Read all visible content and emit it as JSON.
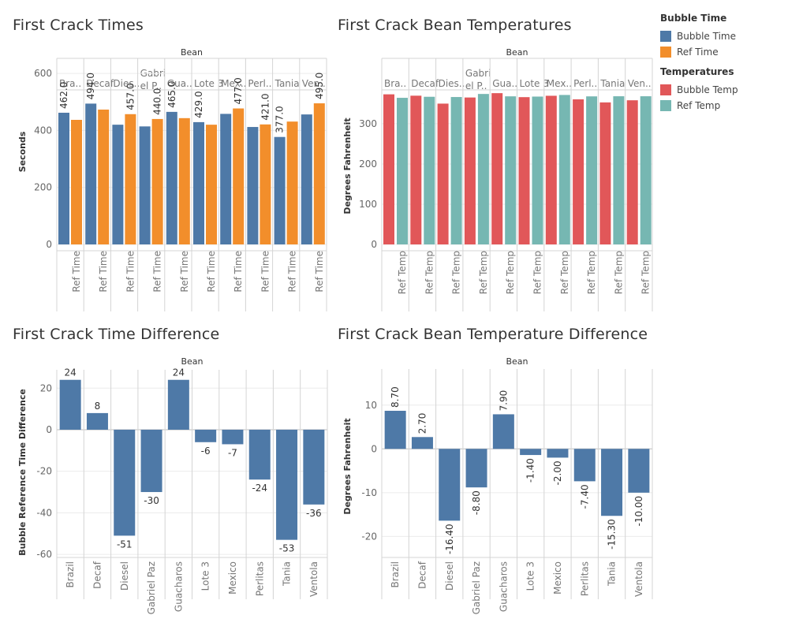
{
  "charts": [
    {
      "title": "First Crack Times"
    },
    {
      "title": "First Crack Bean Temperatures"
    },
    {
      "title": "First Crack Time Difference"
    },
    {
      "title": "First Crack Bean Temperature Difference"
    }
  ],
  "legends": [
    {
      "title": "Bubble Time",
      "items": [
        {
          "label": "Bubble Time",
          "color": "#4e79a7"
        },
        {
          "label": "Ref Time",
          "color": "#f28e2b"
        }
      ]
    },
    {
      "title": "Temperatures",
      "items": [
        {
          "label": "Bubble Temp",
          "color": "#e15759"
        },
        {
          "label": "Ref Temp",
          "color": "#76b7b2"
        }
      ]
    }
  ],
  "chart_data": [
    {
      "type": "bar",
      "title": "First Crack Times",
      "header": "Bean",
      "ylabel": "Seconds",
      "ylim": [
        0,
        650
      ],
      "yticks": [
        0,
        200,
        400,
        600
      ],
      "grid": true,
      "categories": [
        "Bra..",
        "Decaf",
        "Dies..",
        "Gabri el P..",
        "Gua..",
        "Lote 3",
        "Mex..",
        "Perl..",
        "Tania",
        "Ven.."
      ],
      "bottom_labels": [
        "",
        "Ref Time"
      ],
      "series": [
        {
          "name": "Bubble Time",
          "color": "#4e79a7",
          "values": [
            462,
            494,
            420,
            414,
            465,
            429,
            458,
            412,
            377,
            456
          ]
        },
        {
          "name": "Ref Time",
          "color": "#f28e2b",
          "values": [
            437,
            473,
            457,
            440,
            443,
            420,
            477,
            421,
            431,
            495
          ]
        }
      ],
      "data_labels": [
        [
          462.0,
          494.0,
          457.0,
          440.0,
          465.0,
          429.0,
          477.0,
          421.0,
          377.0,
          495.0
        ],
        [
          "462.0",
          "494.0",
          "457.0",
          "440.0",
          "465.0",
          "429.0",
          "477.0",
          "421.0",
          "377.0",
          "495.0"
        ]
      ]
    },
    {
      "type": "bar",
      "title": "First Crack Bean Temperatures",
      "header": "Bean",
      "ylabel": "Degrees Fahrenheit",
      "ylim": [
        0,
        390
      ],
      "yticks": [
        0,
        100,
        200,
        300
      ],
      "grid": true,
      "categories": [
        "Bra..",
        "Decaf",
        "Dies..",
        "Gabri el P..",
        "Gua..",
        "Lote 3",
        "Mex..",
        "Perl..",
        "Tania",
        "Ven.."
      ],
      "bottom_labels": [
        "",
        "Ref Temp"
      ],
      "series": [
        {
          "name": "Bubble Temp",
          "color": "#e15759",
          "values": [
            373.1,
            369.7,
            350,
            365.2,
            376,
            366.1,
            369.5,
            360.6,
            353,
            358.3
          ]
        },
        {
          "name": "Ref Temp",
          "color": "#76b7b2",
          "values": [
            364.4,
            367,
            366.4,
            374,
            368.1,
            367.5,
            371.5,
            368,
            368.3,
            368.3
          ]
        }
      ]
    },
    {
      "type": "bar",
      "title": "First Crack Time Difference",
      "header": "Bean",
      "ylabel": "Bubble Reference Time Difference",
      "ylim": [
        -63,
        22
      ],
      "yticks": [
        -60,
        -40,
        -20,
        0,
        20
      ],
      "grid": true,
      "categories": [
        "Brazil",
        "Decaf",
        "Diesel",
        "Gabriel Paz",
        "Guacharos",
        "Lote 3",
        "Mexico",
        "Perlitas",
        "Tania",
        "Ventola"
      ],
      "series": [
        {
          "name": "",
          "color": "#4e79a7",
          "values": [
            24,
            8,
            -51,
            -30,
            24,
            -6,
            -7,
            -24,
            -53,
            -36
          ]
        }
      ],
      "labels": [
        "24",
        "8",
        "-51",
        "-30",
        "24",
        "-6",
        "-7",
        "-24",
        "-53",
        "-36"
      ]
    },
    {
      "type": "bar",
      "title": "First Crack Bean Temperature Difference",
      "header": "Bean",
      "ylabel": "Degrees Fahrenheit",
      "ylim": [
        -23,
        15
      ],
      "yticks": [
        -20,
        -10,
        0,
        10
      ],
      "grid": true,
      "categories": [
        "Brazil",
        "Decaf",
        "Diesel",
        "Gabriel Paz",
        "Guacharos",
        "Lote 3",
        "Mexico",
        "Perlitas",
        "Tania",
        "Ventola"
      ],
      "series": [
        {
          "name": "",
          "color": "#4e79a7",
          "values": [
            8.7,
            2.7,
            -16.4,
            -8.8,
            7.9,
            -1.4,
            -2.0,
            -7.4,
            -15.3,
            -10.0
          ]
        }
      ],
      "labels": [
        "8.70",
        "2.70",
        "-16.40",
        "-8.80",
        "7.90",
        "-1.40",
        "-2.00",
        "-7.40",
        "-15.30",
        "-10.00"
      ]
    }
  ]
}
